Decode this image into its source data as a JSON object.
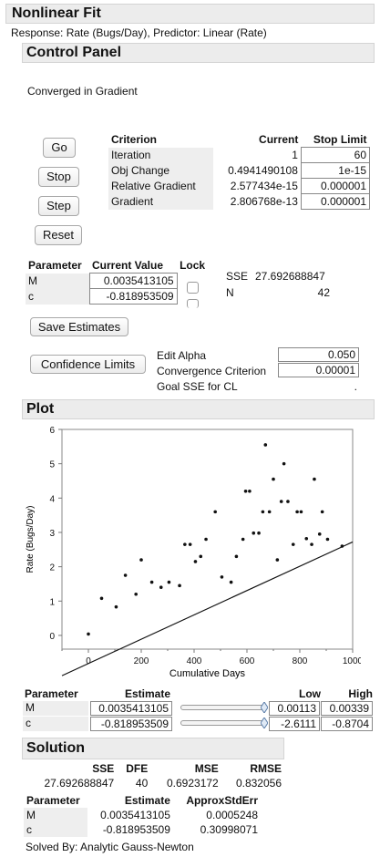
{
  "title": "Nonlinear Fit",
  "response_line": "Response: Rate (Bugs/Day), Predictor: Linear (Rate)",
  "control_panel": {
    "title": "Control Panel",
    "status": "Converged in Gradient",
    "buttons": {
      "go": "Go",
      "stop": "Stop",
      "step": "Step",
      "reset": "Reset"
    },
    "criterion_table": {
      "headers": [
        "Criterion",
        "Current",
        "Stop Limit"
      ],
      "rows": [
        {
          "name": "Iteration",
          "current": "1",
          "limit": "60"
        },
        {
          "name": "Obj Change",
          "current": "0.4941490108",
          "limit": "1e-15"
        },
        {
          "name": "Relative Gradient",
          "current": "2.577434e-15",
          "limit": "0.000001"
        },
        {
          "name": "Gradient",
          "current": "2.806768e-13",
          "limit": "0.000001"
        }
      ]
    },
    "param_table": {
      "headers": [
        "Parameter",
        "Current Value",
        "Lock"
      ],
      "rows": [
        {
          "name": "M",
          "value": "0.0035413105"
        },
        {
          "name": "c",
          "value": "-0.818953509"
        }
      ]
    },
    "sse_label": "SSE",
    "sse_value": "27.692688847",
    "n_label": "N",
    "n_value": "42",
    "save_estimates": "Save Estimates",
    "confidence_limits": "Confidence Limits",
    "edit_alpha_label": "Edit Alpha",
    "edit_alpha_value": "0.050",
    "convergence_label": "Convergence Criterion",
    "convergence_value": "0.00001",
    "goal_sse_label": "Goal SSE for CL",
    "goal_sse_value": "."
  },
  "plot": {
    "title": "Plot"
  },
  "chart_data": {
    "type": "scatter",
    "xlabel": "Cumulative Days",
    "ylabel": "Rate (Bugs/Day)",
    "xlim": [
      -100,
      1000
    ],
    "ylim": [
      -0.4,
      6
    ],
    "xticks": [
      0,
      200,
      400,
      600,
      800,
      1000
    ],
    "yticks": [
      0,
      1,
      2,
      3,
      4,
      5,
      6
    ],
    "points": [
      [
        0,
        0.04
      ],
      [
        50,
        1.08
      ],
      [
        105,
        0.83
      ],
      [
        140,
        1.75
      ],
      [
        180,
        1.2
      ],
      [
        200,
        2.2
      ],
      [
        240,
        1.55
      ],
      [
        275,
        1.4
      ],
      [
        305,
        1.55
      ],
      [
        345,
        1.45
      ],
      [
        365,
        2.65
      ],
      [
        385,
        2.65
      ],
      [
        405,
        2.15
      ],
      [
        425,
        2.3
      ],
      [
        445,
        2.8
      ],
      [
        480,
        3.6
      ],
      [
        505,
        1.7
      ],
      [
        540,
        1.55
      ],
      [
        560,
        2.3
      ],
      [
        585,
        2.8
      ],
      [
        595,
        4.2
      ],
      [
        610,
        4.2
      ],
      [
        625,
        2.98
      ],
      [
        645,
        2.98
      ],
      [
        660,
        3.6
      ],
      [
        670,
        5.55
      ],
      [
        685,
        3.6
      ],
      [
        700,
        4.55
      ],
      [
        715,
        2.2
      ],
      [
        730,
        3.9
      ],
      [
        740,
        5.0
      ],
      [
        755,
        3.9
      ],
      [
        775,
        2.65
      ],
      [
        790,
        3.6
      ],
      [
        805,
        3.6
      ],
      [
        825,
        2.82
      ],
      [
        845,
        2.65
      ],
      [
        855,
        4.55
      ],
      [
        875,
        2.95
      ],
      [
        885,
        3.6
      ],
      [
        905,
        2.8
      ],
      [
        960,
        2.6
      ]
    ],
    "fit_line": {
      "slope": 0.0035413105,
      "intercept": -0.818953509,
      "x": [
        -100,
        1000
      ]
    }
  },
  "estimate_table": {
    "headers": [
      "Parameter",
      "Estimate",
      "Low",
      "High"
    ],
    "rows": [
      {
        "name": "M",
        "estimate": "0.0035413105",
        "low": "0.00113",
        "high": "0.00339"
      },
      {
        "name": "c",
        "estimate": "-0.818953509",
        "low": "-2.6111",
        "high": "-0.8704"
      }
    ]
  },
  "solution": {
    "title": "Solution",
    "stats_headers": [
      "SSE",
      "DFE",
      "MSE",
      "RMSE"
    ],
    "stats_values": [
      "27.692688847",
      "40",
      "0.6923172",
      "0.832056"
    ],
    "param_headers": [
      "Parameter",
      "Estimate",
      "ApproxStdErr"
    ],
    "param_rows": [
      {
        "name": "M",
        "estimate": "0.0035413105",
        "stderr": "0.0005248"
      },
      {
        "name": "c",
        "estimate": "-0.818953509",
        "stderr": "0.30998071"
      }
    ],
    "solved_by": "Solved By: Analytic Gauss-Newton"
  }
}
